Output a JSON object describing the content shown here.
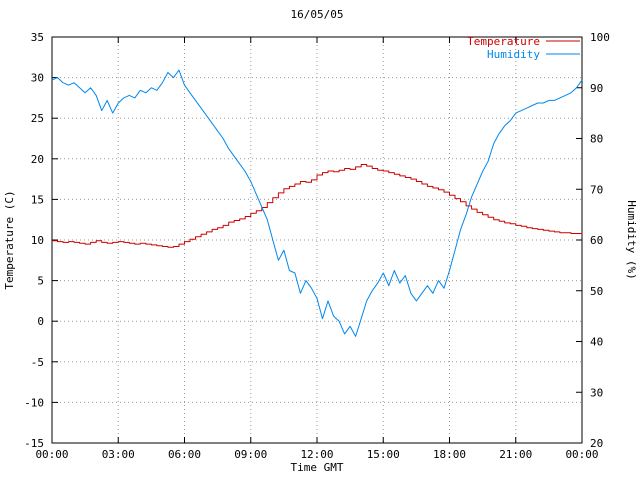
{
  "chart_data": {
    "type": "line",
    "title": "16/05/05",
    "xlabel": "Time GMT",
    "x_ticks": [
      "00:00",
      "03:00",
      "06:00",
      "09:00",
      "12:00",
      "15:00",
      "18:00",
      "21:00",
      "00:00"
    ],
    "x_range_hours": [
      0,
      24
    ],
    "x_tick_step_hours": 3,
    "sample_interval_hours": 0.25,
    "axes": {
      "left": {
        "label": "Temperature (C)",
        "min": -15,
        "max": 35,
        "tick_step": 5
      },
      "right": {
        "label": "Humidity (%)",
        "min": 20,
        "max": 100,
        "tick_step": 10
      }
    },
    "grid": {
      "color": "#9a9a9a",
      "style": "dotted"
    },
    "background": "#ffffff",
    "legend": {
      "position": "top-right-inside",
      "entries": [
        "Temperature",
        "Humidity"
      ]
    },
    "series": [
      {
        "name": "Temperature",
        "axis": "left",
        "color": "#cc0000",
        "style": "steps",
        "values": [
          9.9,
          9.8,
          9.7,
          9.8,
          9.7,
          9.6,
          9.5,
          9.7,
          9.9,
          9.7,
          9.6,
          9.7,
          9.8,
          9.7,
          9.6,
          9.5,
          9.6,
          9.5,
          9.4,
          9.3,
          9.2,
          9.1,
          9.2,
          9.5,
          9.8,
          10.1,
          10.4,
          10.7,
          11.0,
          11.3,
          11.5,
          11.8,
          12.2,
          12.4,
          12.6,
          12.9,
          13.3,
          13.6,
          14.0,
          14.6,
          15.2,
          15.8,
          16.3,
          16.6,
          16.9,
          17.2,
          17.1,
          17.4,
          18.0,
          18.3,
          18.5,
          18.4,
          18.6,
          18.8,
          18.7,
          19.0,
          19.3,
          19.1,
          18.8,
          18.6,
          18.5,
          18.3,
          18.1,
          17.9,
          17.7,
          17.5,
          17.2,
          16.9,
          16.6,
          16.4,
          16.2,
          15.9,
          15.5,
          15.1,
          14.7,
          14.2,
          13.8,
          13.4,
          13.1,
          12.8,
          12.5,
          12.3,
          12.1,
          12.0,
          11.8,
          11.7,
          11.5,
          11.4,
          11.3,
          11.2,
          11.1,
          11.0,
          10.9,
          10.9,
          10.8,
          10.8,
          10.7
        ]
      },
      {
        "name": "Humidity",
        "axis": "right",
        "color": "#0088ee",
        "style": "line",
        "values": [
          91.5,
          92,
          91,
          90.5,
          91,
          90,
          89,
          90,
          88.5,
          85.5,
          87.5,
          85,
          87,
          88,
          88.5,
          88,
          89.5,
          89,
          90,
          89.5,
          91,
          93,
          92,
          93.5,
          90.5,
          89,
          87.5,
          86,
          84.5,
          83,
          81.5,
          80,
          78,
          76.5,
          75,
          73.5,
          71.5,
          69,
          66.5,
          64,
          60,
          56,
          58,
          54,
          53.5,
          49.5,
          52,
          50.5,
          48.5,
          44.5,
          48,
          45,
          44,
          41.5,
          43,
          41,
          44.5,
          48,
          50,
          51.5,
          53.5,
          51,
          54,
          51.5,
          53,
          49.5,
          48,
          49.5,
          51,
          49.5,
          52,
          50.5,
          54,
          58,
          62,
          65,
          68.5,
          71,
          73.5,
          75.5,
          79,
          81,
          82.5,
          83.5,
          85,
          85.5,
          86,
          86.5,
          87,
          87,
          87.5,
          87.5,
          88,
          88.5,
          89,
          90,
          91.5
        ]
      }
    ]
  }
}
